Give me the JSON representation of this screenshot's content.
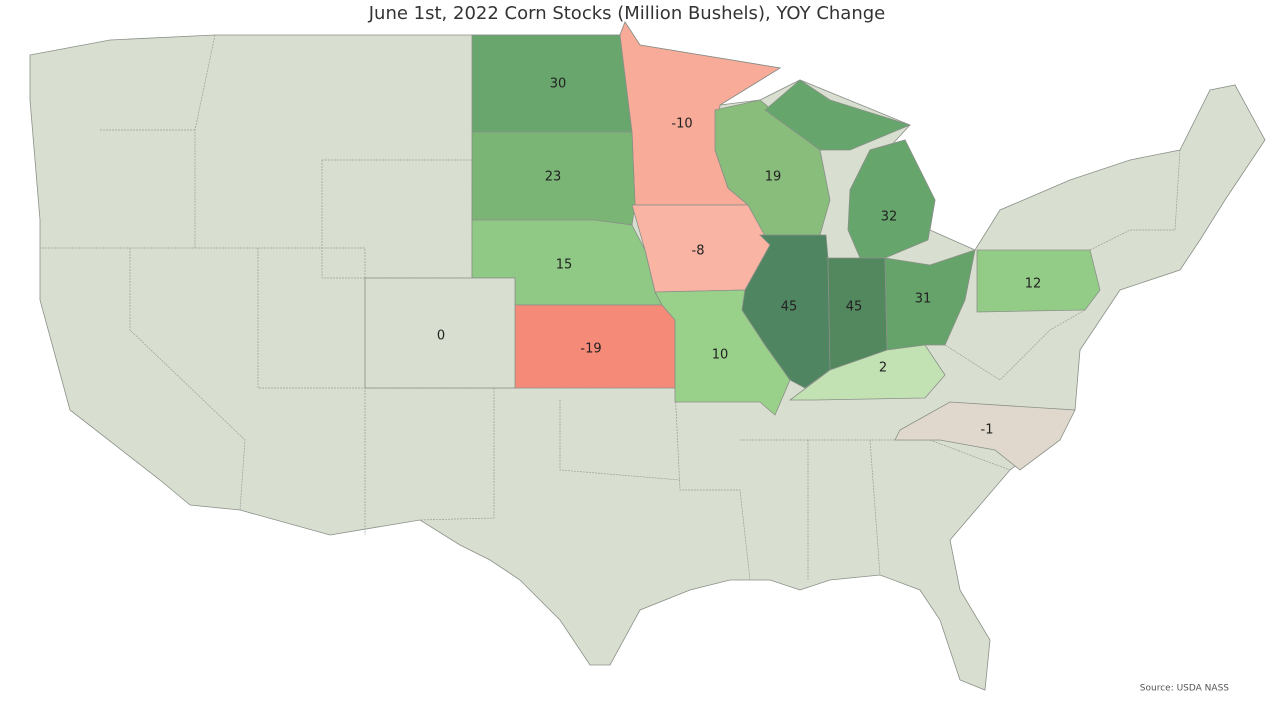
{
  "title": "June 1st, 2022 Corn Stocks (Million Bushels), YOY Change",
  "source": "Source: USDA NASS",
  "base_color": "#d8dfd0",
  "regions": [
    {
      "value": 30,
      "color": "#68a66e"
    },
    {
      "value": -10,
      "color": "#f8ab98"
    },
    {
      "value": 23,
      "color": "#7ab576"
    },
    {
      "value": 19,
      "color": "#88bd7b"
    },
    {
      "value": 32,
      "color": "#66a56c"
    },
    {
      "value": -8,
      "color": "#f9b4a4"
    },
    {
      "value": 15,
      "color": "#8fc985"
    },
    {
      "value": -19,
      "color": "#f58a78"
    },
    {
      "value": 10,
      "color": "#99d18a"
    },
    {
      "value": 45,
      "color": "#4f8560"
    },
    {
      "value": 45,
      "color": "#53885f"
    },
    {
      "value": 31,
      "color": "#66a36a"
    },
    {
      "value": 2,
      "color": "#c3e2b3"
    },
    {
      "value": 12,
      "color": "#93cc86"
    },
    {
      "value": -1,
      "color": "#e0d8cc"
    },
    {
      "value": 0,
      "color": "#d8dfd0"
    }
  ]
}
